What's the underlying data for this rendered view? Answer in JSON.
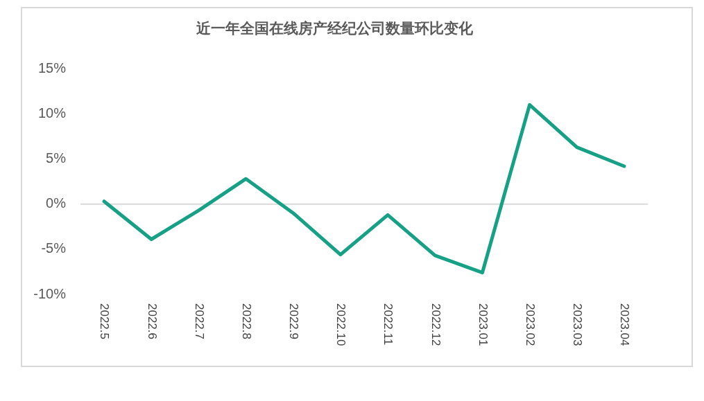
{
  "chart_data": {
    "type": "line",
    "title": "近一年全国在线房产经纪公司数量环比变化",
    "categories": [
      "2022.5",
      "2022.6",
      "2022.7",
      "2022.8",
      "2022.9",
      "2022.10",
      "2022.11",
      "2022.12",
      "2023.01",
      "2023.02",
      "2023.03",
      "2023.04"
    ],
    "series": [
      {
        "color": "#16a085",
        "values": [
          0.3,
          -3.9,
          -0.7,
          2.8,
          -1.0,
          -5.6,
          -1.2,
          -5.7,
          -7.6,
          11.0,
          6.3,
          4.2
        ]
      }
    ],
    "ylim": [
      -10,
      15
    ],
    "yticks": [
      {
        "value": -10,
        "label": "-10%"
      },
      {
        "value": -5,
        "label": "-5%"
      },
      {
        "value": 0,
        "label": "0%"
      },
      {
        "value": 5,
        "label": "5%"
      },
      {
        "value": 10,
        "label": "10%"
      },
      {
        "value": 15,
        "label": "15%"
      }
    ],
    "ref_lines": [
      {
        "axis": "y",
        "value": 0,
        "color": "#d9d9d9"
      }
    ],
    "grid": false,
    "legend": false,
    "marker": "none",
    "line_style": "solid"
  }
}
